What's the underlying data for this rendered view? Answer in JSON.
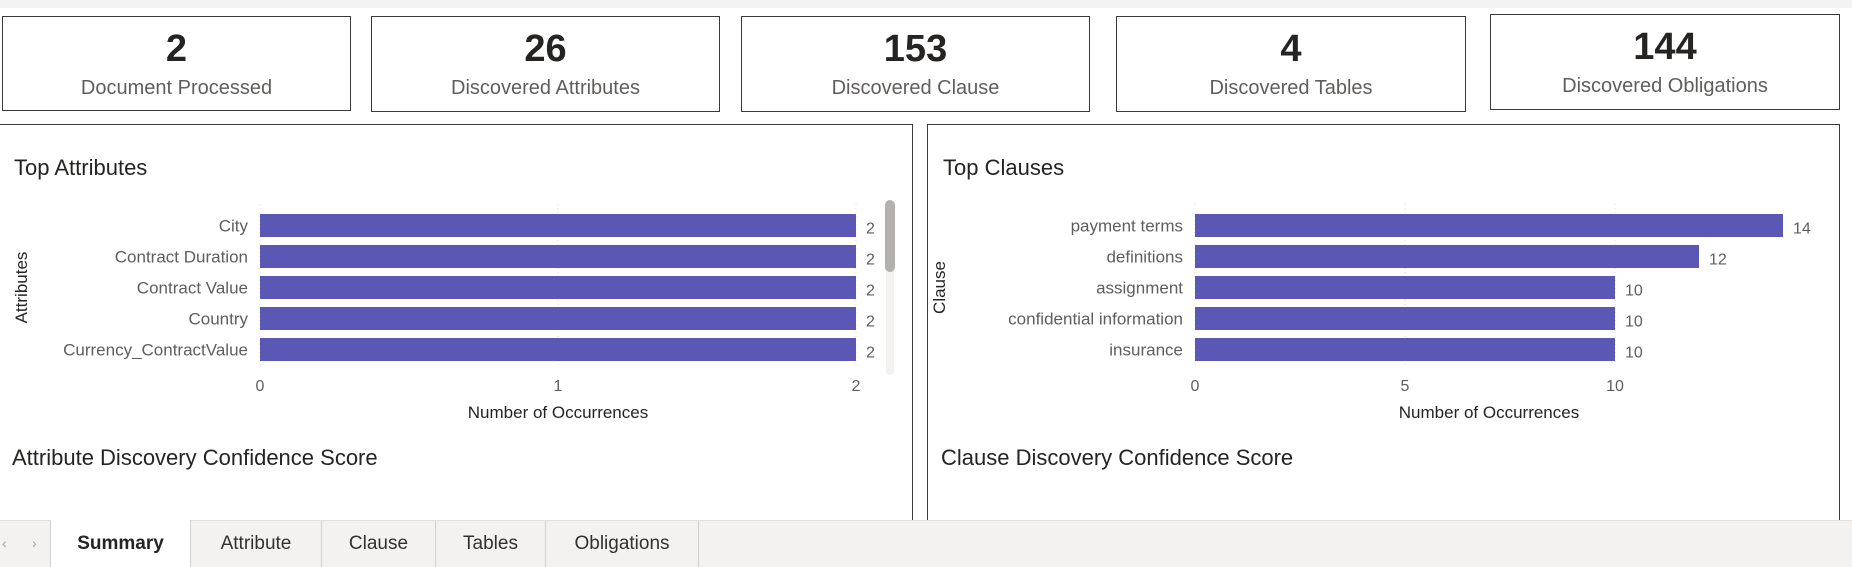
{
  "kpis": [
    {
      "value": "2",
      "label": "Document Processed"
    },
    {
      "value": "26",
      "label": "Discovered Attributes"
    },
    {
      "value": "153",
      "label": "Discovered Clause"
    },
    {
      "value": "4",
      "label": "Discovered Tables"
    },
    {
      "value": "144",
      "label": "Discovered Obligations"
    }
  ],
  "left_panel": {
    "title": "Top Attributes",
    "subtitle": "Attribute Discovery Confidence Score"
  },
  "right_panel": {
    "title": "Top Clauses",
    "subtitle": "Clause Discovery Confidence Score"
  },
  "chart_data": [
    {
      "type": "bar",
      "orientation": "horizontal",
      "title": "Top Attributes",
      "xlabel": "Number of Occurrences",
      "ylabel": "Attributes",
      "categories": [
        "City",
        "Contract Duration",
        "Contract Value",
        "Country",
        "Currency_ContractValue"
      ],
      "values": [
        2,
        2,
        2,
        2,
        2
      ],
      "xlim": [
        0,
        2
      ],
      "xticks": [
        0,
        1,
        2
      ],
      "data_labels": true,
      "bar_color": "#5b57b5",
      "grid": true
    },
    {
      "type": "bar",
      "orientation": "horizontal",
      "title": "Top Clauses",
      "xlabel": "Number of Occurrences",
      "ylabel": "Clause",
      "categories": [
        "payment terms",
        "definitions",
        "assignment",
        "confidential information",
        "insurance"
      ],
      "values": [
        14,
        12,
        10,
        10,
        10
      ],
      "xlim": [
        0,
        14
      ],
      "xticks": [
        0,
        5,
        10
      ],
      "data_labels": true,
      "bar_color": "#5b57b5",
      "grid": true
    }
  ],
  "tabs": [
    {
      "label": "Summary",
      "active": true
    },
    {
      "label": "Attribute",
      "active": false
    },
    {
      "label": "Clause",
      "active": false
    },
    {
      "label": "Tables",
      "active": false
    },
    {
      "label": "Obligations",
      "active": false
    }
  ],
  "nav": {
    "prev_icon": "‹",
    "next_icon": "›"
  }
}
